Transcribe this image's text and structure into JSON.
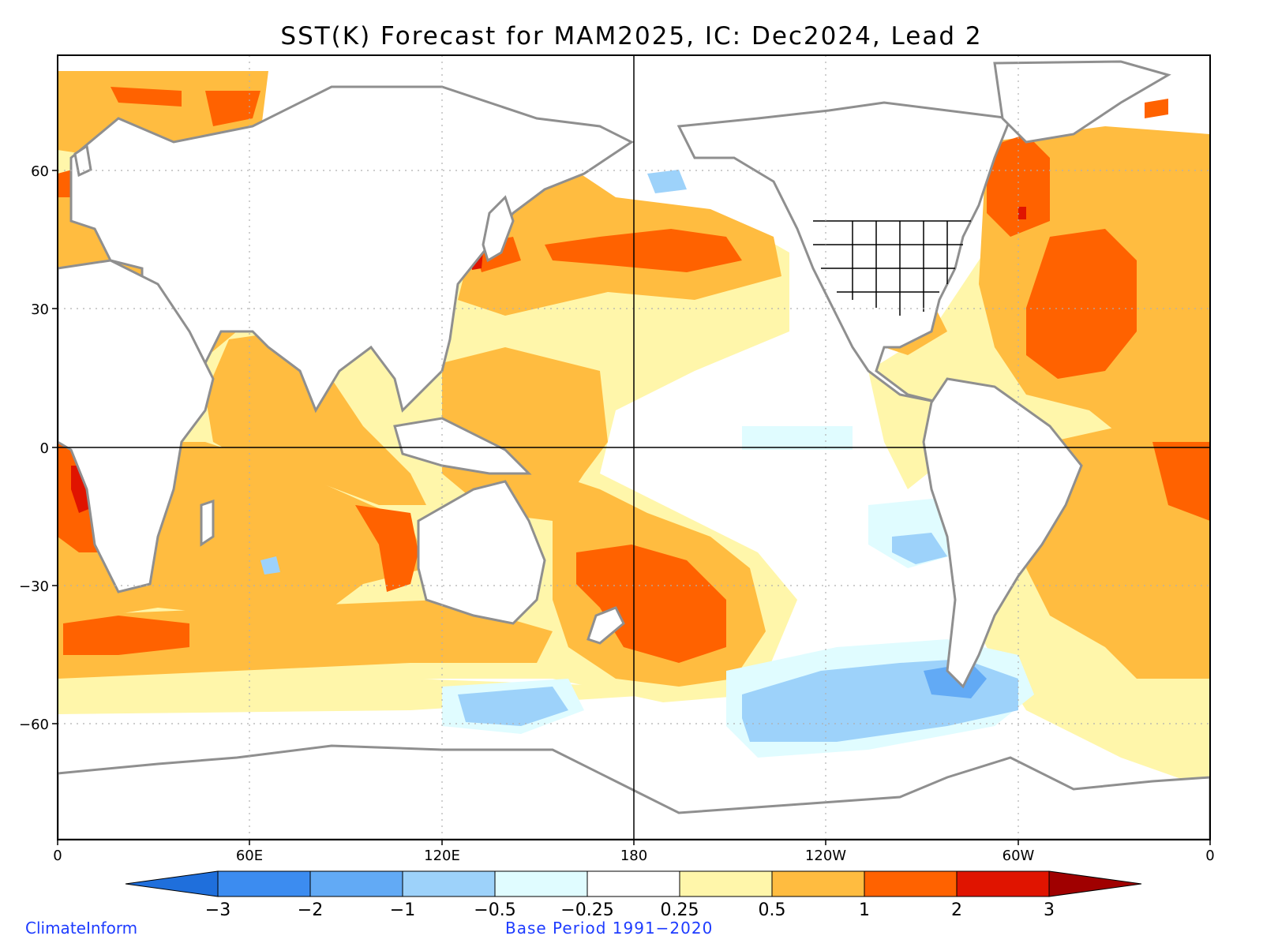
{
  "title": "SST(K) Forecast for MAM2025, IC: Dec2024, Lead 2",
  "variable": "SST anomaly (K)",
  "season": "MAM2025",
  "initial_condition": "Dec2024",
  "lead": "2",
  "y_ticks": [
    "60",
    "30",
    "0",
    "−30",
    "−60"
  ],
  "x_ticks": [
    "0",
    "60E",
    "120E",
    "180",
    "120W",
    "60W",
    "0"
  ],
  "colorbar": {
    "labels": [
      "−3",
      "−2",
      "−1",
      "−0.5",
      "−0.25",
      "0.25",
      "0.5",
      "1",
      "2",
      "3"
    ],
    "colors": [
      "#1f6fdc",
      "#3c8cf0",
      "#62aaf5",
      "#9dd2fa",
      "#e0fcff",
      "#ffffff",
      "#fff6aa",
      "#ffbc40",
      "#ff6200",
      "#e01400",
      "#a00000"
    ]
  },
  "credit": "ClimateInform",
  "base_period": "Base Period 1991−2020",
  "map_data": {
    "projection": "equirectangular",
    "lon_range": [
      0,
      360
    ],
    "lat_range": [
      -90,
      90
    ],
    "features": [
      {
        "name": "North Pacific warm anomaly",
        "anomaly": "1 to 2"
      },
      {
        "name": "North Atlantic warm anomaly",
        "anomaly": "1 to 2"
      },
      {
        "name": "Benguela coast warm anomaly",
        "anomaly": "2 to 3"
      },
      {
        "name": "Southwest Pacific warm anomaly",
        "anomaly": "1 to 2"
      },
      {
        "name": "Southern Ocean cold anomaly near Drake Passage",
        "anomaly": "-2 to -1"
      },
      {
        "name": "Eastern equatorial Pacific neutral",
        "anomaly": "-0.25 to 0.25"
      }
    ]
  }
}
